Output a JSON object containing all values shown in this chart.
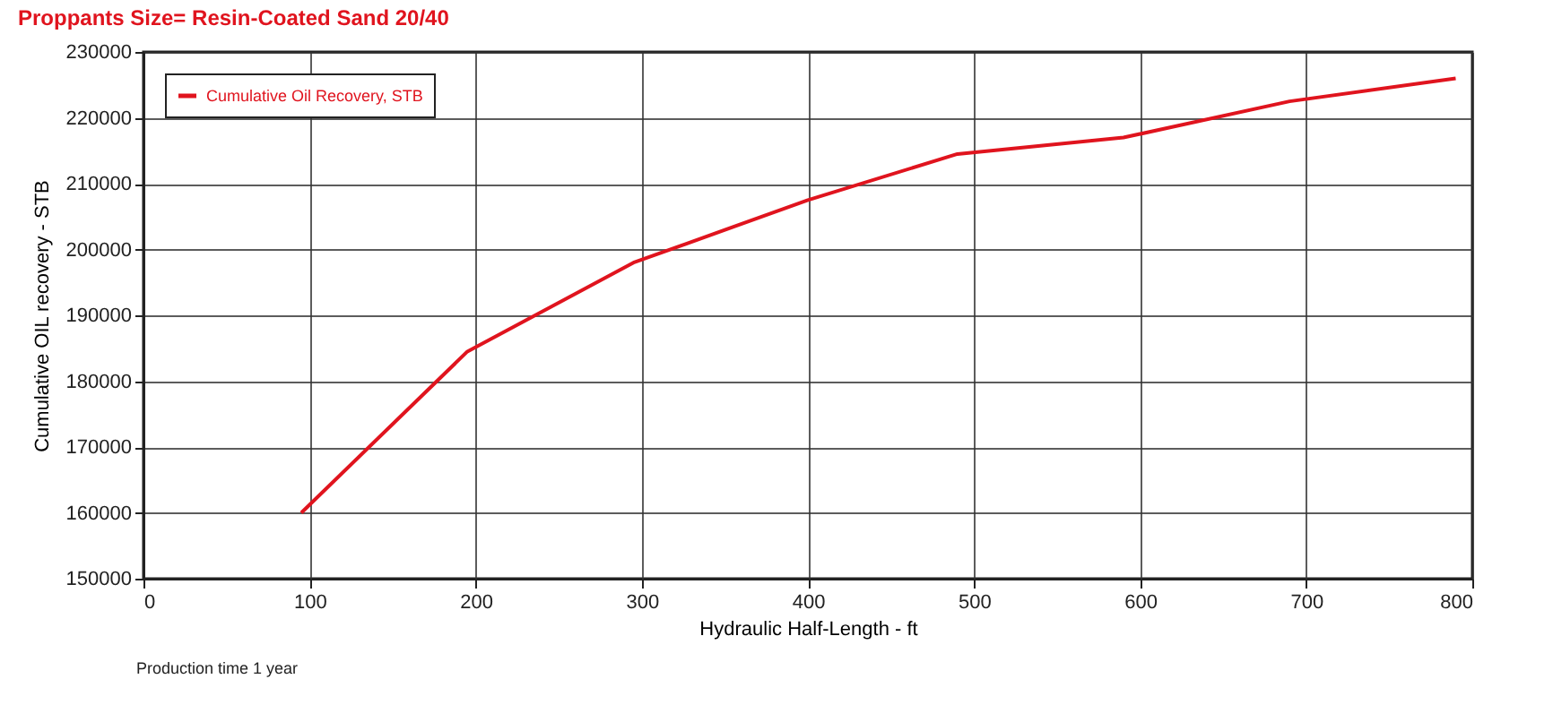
{
  "chart_data": {
    "type": "line",
    "title": "Proppants Size= Resin-Coated Sand 20/40",
    "xlabel": "Hydraulic Half-Length - ft",
    "ylabel": "Cumulative OIL recovery - STB",
    "annotations": [
      "Production time 1 year"
    ],
    "series": [
      {
        "name": "Cumulative Oil Recovery, STB",
        "color": "#e0141e",
        "x": [
          95,
          195,
          295,
          400,
          490,
          590,
          690,
          790
        ],
        "values": [
          160000,
          184500,
          198000,
          207500,
          214500,
          217000,
          222500,
          226000
        ]
      }
    ],
    "xlim": [
      0,
      800
    ],
    "xticks": [
      0,
      100,
      200,
      300,
      400,
      500,
      600,
      700,
      800
    ],
    "ylim": [
      150000,
      230000
    ],
    "yticks": [
      150000,
      160000,
      170000,
      180000,
      190000,
      200000,
      210000,
      220000,
      230000
    ],
    "grid": true,
    "legend": "top left",
    "marker": "none",
    "line_style": "solid"
  }
}
